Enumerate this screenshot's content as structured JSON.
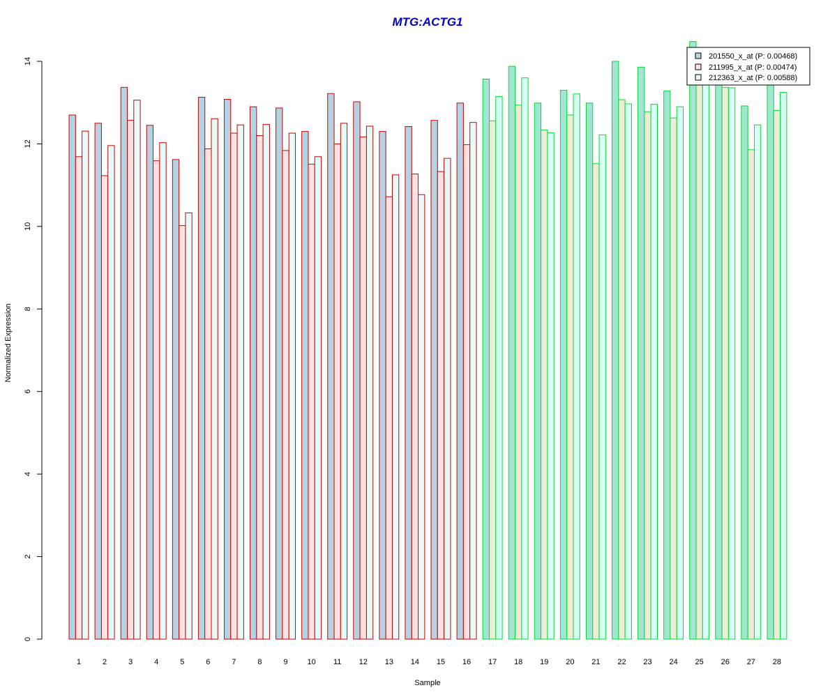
{
  "colors": {
    "title": "#0000cc",
    "group1_border": "#cc0000",
    "group2_border": "#00dd33",
    "group1_fills": [
      "#b4d2e1",
      "#ffe1e1",
      "#e6fafa"
    ],
    "group2_fills": [
      "#a0e6d2",
      "#f0ebd7",
      "#d7fff5"
    ],
    "legend_fills": [
      "#b4d2e1",
      "#ffe1e1",
      "#e6fafa"
    ]
  },
  "chart_data": {
    "type": "bar",
    "title": "MTG:ACTG1",
    "xlabel": "Sample",
    "ylabel": "Normalized Expression",
    "ylim": [
      0,
      14
    ],
    "yticks": [
      "0",
      "2",
      "4",
      "6",
      "8",
      "10",
      "12",
      "14"
    ],
    "categories": [
      "1",
      "2",
      "3",
      "4",
      "5",
      "6",
      "7",
      "8",
      "9",
      "10",
      "11",
      "12",
      "13",
      "14",
      "15",
      "16",
      "17",
      "18",
      "19",
      "20",
      "21",
      "22",
      "23",
      "24",
      "25",
      "26",
      "27",
      "28"
    ],
    "group1_samples": 16,
    "legend_placement": "top-right",
    "grid": false,
    "series": [
      {
        "name": "201550_x_at (P: 0.00468)",
        "values": [
          12.7,
          12.5,
          13.37,
          12.45,
          11.62,
          13.13,
          13.08,
          12.9,
          12.87,
          12.3,
          13.22,
          13.02,
          12.3,
          12.42,
          12.57,
          12.99,
          13.57,
          13.88,
          12.99,
          13.3,
          12.99,
          14.0,
          13.86,
          13.28,
          14.48,
          13.52,
          12.92,
          13.77
        ]
      },
      {
        "name": "211995_x_at (P: 0.00474)",
        "values": [
          11.69,
          11.23,
          12.57,
          11.59,
          10.02,
          11.88,
          12.26,
          12.2,
          11.84,
          11.51,
          12.0,
          12.17,
          10.72,
          11.27,
          11.33,
          11.98,
          12.56,
          12.94,
          12.34,
          12.7,
          11.52,
          13.07,
          12.78,
          12.63,
          13.47,
          13.37,
          11.86,
          12.81
        ]
      },
      {
        "name": "212363_x_at (P: 0.00588)",
        "values": [
          12.31,
          11.96,
          13.06,
          12.03,
          10.33,
          12.61,
          12.46,
          12.47,
          12.26,
          11.69,
          12.5,
          12.43,
          11.25,
          10.77,
          11.65,
          12.52,
          13.15,
          13.6,
          12.27,
          13.21,
          12.22,
          12.97,
          12.96,
          12.9,
          13.46,
          13.36,
          12.46,
          13.25
        ]
      }
    ]
  }
}
